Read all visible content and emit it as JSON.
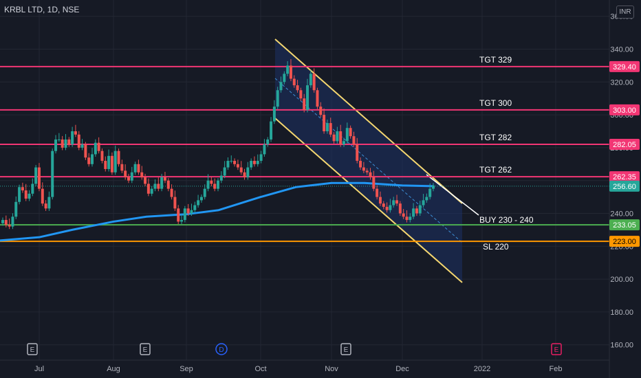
{
  "header": {
    "symbol": "KRBL LTD, 1D, NSE",
    "currency": "INR"
  },
  "colors": {
    "background": "#161a25",
    "grid": "#232733",
    "axis_text": "#b2b5be",
    "up": "#26a69a",
    "down": "#ef5350",
    "ma": "#2196f3",
    "target_line": "#f23674",
    "buy_line": "#4caf50",
    "sl_line": "#ff9800",
    "channel_edge": "#f5d770",
    "channel_fill": "#1e3264"
  },
  "chart_data": {
    "type": "candlestick",
    "title": "KRBL LTD, 1D, NSE",
    "y_axis": {
      "min": 160,
      "max": 360,
      "ticks": [
        160,
        180,
        200,
        220,
        240,
        260,
        280,
        300,
        320,
        340,
        360
      ],
      "currency": "INR"
    },
    "x_axis": {
      "labels": [
        "Jul",
        "Aug",
        "Sep",
        "Oct",
        "Nov",
        "Dec",
        "2022",
        "Feb"
      ]
    },
    "grid": true,
    "levels": [
      {
        "name": "TGT 329",
        "value": 329.4,
        "price_label": "329.40",
        "color": "#f23674"
      },
      {
        "name": "TGT 300",
        "value": 303.0,
        "price_label": "303.00",
        "color": "#f23674"
      },
      {
        "name": "TGT 282",
        "value": 282.05,
        "price_label": "282.05",
        "color": "#f23674"
      },
      {
        "name": "TGT 262",
        "value": 262.35,
        "price_label": "262.35",
        "color": "#f23674"
      },
      {
        "name": "BUY 230 - 240",
        "value": 233.05,
        "price_label": "233.05",
        "color": "#4caf50"
      },
      {
        "name": "SL 220",
        "value": 223.0,
        "price_label": "223.00",
        "color": "#ff9800"
      }
    ],
    "last_price": {
      "value": 256.6,
      "label": "256.60"
    },
    "events": [
      {
        "label": "E",
        "month": "Jul"
      },
      {
        "label": "E",
        "month": "Aug"
      },
      {
        "label": "D",
        "month": "Sep"
      },
      {
        "label": "E",
        "month": "Nov"
      },
      {
        "label": "E",
        "month": "Feb"
      }
    ],
    "moving_average": [
      {
        "x": "Jun 21",
        "y": 223.5
      },
      {
        "x": "Jul 1",
        "y": 225.5
      },
      {
        "x": "Jul 15",
        "y": 230
      },
      {
        "x": "Aug 1",
        "y": 235
      },
      {
        "x": "Aug 15",
        "y": 238
      },
      {
        "x": "Sep 1",
        "y": 239.5
      },
      {
        "x": "Sep 15",
        "y": 242
      },
      {
        "x": "Oct 1",
        "y": 250
      },
      {
        "x": "Oct 15",
        "y": 256
      },
      {
        "x": "Nov 1",
        "y": 258.5
      },
      {
        "x": "Nov 15",
        "y": 258.5
      },
      {
        "x": "Dec 1",
        "y": 257
      },
      {
        "x": "Dec 10",
        "y": 256.6
      }
    ],
    "closes": [
      236,
      233,
      232,
      238,
      247,
      256,
      254,
      249,
      252,
      258,
      268,
      255,
      246,
      243,
      250,
      278,
      285,
      285,
      280,
      285,
      282,
      290,
      288,
      280,
      282,
      274,
      270,
      276,
      283,
      278,
      272,
      267,
      275,
      265,
      278,
      270,
      266,
      262,
      260,
      265,
      270,
      265,
      262,
      258,
      252,
      255,
      258,
      255,
      262,
      260,
      255,
      250,
      243,
      235,
      236,
      243,
      240,
      242,
      245,
      248,
      250,
      255,
      260,
      258,
      255,
      260,
      263,
      268,
      272,
      272,
      270,
      268,
      265,
      262,
      268,
      272,
      270,
      272,
      276,
      282,
      285,
      296,
      305,
      315,
      320,
      325,
      330,
      322,
      318,
      315,
      310,
      303,
      318,
      325,
      315,
      305,
      300,
      290,
      295,
      288,
      284,
      290,
      282,
      284,
      292,
      287,
      282,
      272,
      268,
      266,
      265,
      262,
      255,
      250,
      246,
      244,
      242,
      245,
      248,
      246,
      240,
      238,
      236,
      238,
      243,
      240,
      245,
      248,
      250,
      255,
      257
    ]
  },
  "buttons": {
    "E": "E",
    "D": "D"
  }
}
